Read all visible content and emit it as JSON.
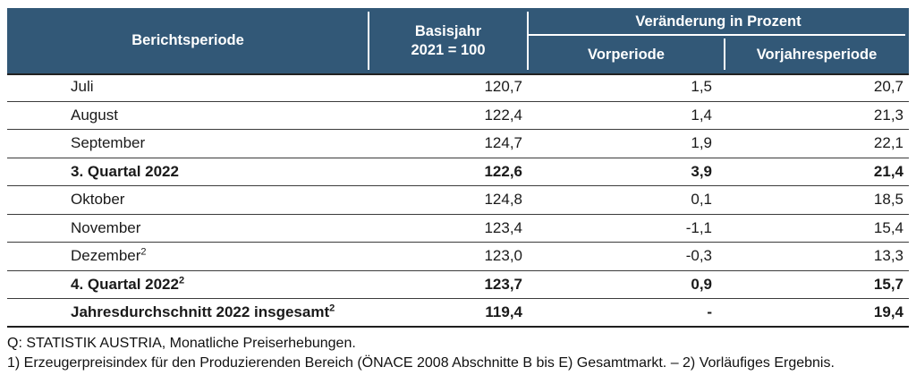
{
  "colors": {
    "header_bg": "#325877",
    "header_text": "#ffffff",
    "body_text": "#1a1a1a",
    "row_divider": "#3b3b3b",
    "table_bottom_border": "#1f1f1f"
  },
  "table": {
    "header": {
      "berichtsperiode": "Berichtsperiode",
      "basisjahr_line1": "Basisjahr",
      "basisjahr_line2": "2021 = 100",
      "veraenderung_group": "Veränderung in Prozent",
      "vorperiode": "Vorperiode",
      "vorjahresperiode": "Vorjahresperiode"
    },
    "rows": [
      {
        "label": "Juli",
        "sup": "",
        "bold": false,
        "basisjahr": "120,7",
        "vorperiode": "1,5",
        "vorjahresperiode": "20,7"
      },
      {
        "label": "August",
        "sup": "",
        "bold": false,
        "basisjahr": "122,4",
        "vorperiode": "1,4",
        "vorjahresperiode": "21,3"
      },
      {
        "label": "September",
        "sup": "",
        "bold": false,
        "basisjahr": "124,7",
        "vorperiode": "1,9",
        "vorjahresperiode": "22,1"
      },
      {
        "label": "3. Quartal 2022",
        "sup": "",
        "bold": true,
        "basisjahr": "122,6",
        "vorperiode": "3,9",
        "vorjahresperiode": "21,4"
      },
      {
        "label": "Oktober",
        "sup": "",
        "bold": false,
        "basisjahr": "124,8",
        "vorperiode": "0,1",
        "vorjahresperiode": "18,5"
      },
      {
        "label": "November",
        "sup": "",
        "bold": false,
        "basisjahr": "123,4",
        "vorperiode": "-1,1",
        "vorjahresperiode": "15,4"
      },
      {
        "label": "Dezember",
        "sup": "2",
        "bold": false,
        "basisjahr": "123,0",
        "vorperiode": "-0,3",
        "vorjahresperiode": "13,3"
      },
      {
        "label": "4. Quartal 2022",
        "sup": "2",
        "bold": true,
        "basisjahr": "123,7",
        "vorperiode": "0,9",
        "vorjahresperiode": "15,7"
      },
      {
        "label": "Jahresdurchschnitt 2022 insgesamt",
        "sup": "2",
        "bold": true,
        "basisjahr": "119,4",
        "vorperiode": "-",
        "vorjahresperiode": "19,4"
      }
    ]
  },
  "footnotes": {
    "line1": "Q: STATISTIK AUSTRIA, Monatliche Preiserhebungen.",
    "line2": "1) Erzeugerpreisindex für den Produzierenden Bereich (ÖNACE 2008 Abschnitte B bis E) Gesamtmarkt. – 2) Vorläufiges Ergebnis."
  },
  "chart_data": {
    "type": "table",
    "columns": [
      "Berichtsperiode",
      "Basisjahr 2021 = 100",
      "Veränderung in Prozent — Vorperiode",
      "Veränderung in Prozent — Vorjahresperiode"
    ],
    "rows": [
      [
        "Juli",
        120.7,
        1.5,
        20.7
      ],
      [
        "August",
        122.4,
        1.4,
        21.3
      ],
      [
        "September",
        124.7,
        1.9,
        22.1
      ],
      [
        "3. Quartal 2022",
        122.6,
        3.9,
        21.4
      ],
      [
        "Oktober",
        124.8,
        0.1,
        18.5
      ],
      [
        "November",
        123.4,
        -1.1,
        15.4
      ],
      [
        "Dezember",
        123.0,
        -0.3,
        13.3
      ],
      [
        "4. Quartal 2022",
        123.7,
        0.9,
        15.7
      ],
      [
        "Jahresdurchschnitt 2022 insgesamt",
        119.4,
        null,
        19.4
      ]
    ]
  }
}
